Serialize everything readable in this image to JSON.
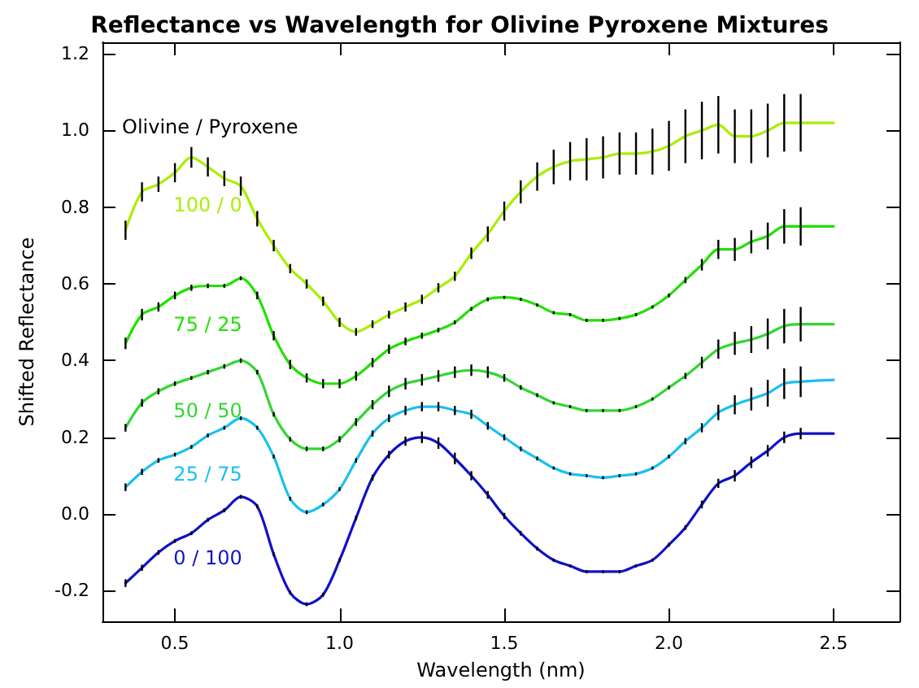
{
  "chart_data": {
    "type": "line",
    "title": "Reflectance vs Wavelength for Olivine Pyroxene Mixtures",
    "xlabel": "Wavelength (nm)",
    "ylabel": "Shifted Reflectance",
    "legend_title": "Olivine / Pyroxene",
    "x": [
      0.35,
      0.4,
      0.45,
      0.5,
      0.55,
      0.6,
      0.65,
      0.7,
      0.75,
      0.8,
      0.85,
      0.9,
      0.95,
      1.0,
      1.05,
      1.1,
      1.15,
      1.2,
      1.25,
      1.3,
      1.35,
      1.4,
      1.45,
      1.5,
      1.55,
      1.6,
      1.65,
      1.7,
      1.75,
      1.8,
      1.85,
      1.9,
      1.95,
      2.0,
      2.05,
      2.1,
      2.15,
      2.2,
      2.25,
      2.3,
      2.35,
      2.4,
      2.5
    ],
    "series": [
      {
        "name": "100 / 0",
        "color": "#aaee00",
        "values": [
          0.74,
          0.84,
          0.86,
          0.89,
          0.93,
          0.905,
          0.875,
          0.855,
          0.77,
          0.7,
          0.64,
          0.6,
          0.555,
          0.5,
          0.475,
          0.495,
          0.52,
          0.54,
          0.56,
          0.59,
          0.62,
          0.68,
          0.73,
          0.79,
          0.84,
          0.88,
          0.905,
          0.92,
          0.925,
          0.93,
          0.94,
          0.94,
          0.945,
          0.96,
          0.985,
          1.0,
          1.015,
          0.985,
          0.985,
          1.0,
          1.02,
          1.02,
          1.02
        ],
        "errors": [
          0.025,
          0.025,
          0.02,
          0.025,
          0.027,
          0.025,
          0.02,
          0.025,
          0.02,
          0.015,
          0.012,
          0.012,
          0.012,
          0.012,
          0.01,
          0.01,
          0.01,
          0.012,
          0.012,
          0.012,
          0.012,
          0.015,
          0.02,
          0.025,
          0.03,
          0.037,
          0.045,
          0.05,
          0.055,
          0.055,
          0.055,
          0.055,
          0.06,
          0.065,
          0.07,
          0.075,
          0.075,
          0.07,
          0.07,
          0.07,
          0.075,
          0.075,
          null
        ]
      },
      {
        "name": "75 / 25",
        "color": "#22e000",
        "values": [
          0.445,
          0.52,
          0.54,
          0.57,
          0.59,
          0.595,
          0.595,
          0.615,
          0.57,
          0.465,
          0.39,
          0.355,
          0.34,
          0.34,
          0.36,
          0.395,
          0.43,
          0.45,
          0.465,
          0.48,
          0.5,
          0.535,
          0.56,
          0.565,
          0.56,
          0.545,
          0.525,
          0.52,
          0.505,
          0.505,
          0.51,
          0.52,
          0.54,
          0.57,
          0.61,
          0.65,
          0.69,
          0.69,
          0.71,
          0.725,
          0.75,
          0.75,
          0.75
        ],
        "errors": [
          0.015,
          0.015,
          0.012,
          0.01,
          0.008,
          0.006,
          0.005,
          0.005,
          0.01,
          0.012,
          0.012,
          0.012,
          0.012,
          0.012,
          0.012,
          0.012,
          0.012,
          0.01,
          0.008,
          0.006,
          0.005,
          0.005,
          0.005,
          0.004,
          0.004,
          0.004,
          0.004,
          0.004,
          0.004,
          0.004,
          0.004,
          0.004,
          0.004,
          0.005,
          0.008,
          0.015,
          0.025,
          0.03,
          0.03,
          0.035,
          0.045,
          0.05,
          null
        ]
      },
      {
        "name": "50 / 50",
        "color": "#33d633",
        "values": [
          0.225,
          0.29,
          0.32,
          0.34,
          0.355,
          0.37,
          0.385,
          0.4,
          0.37,
          0.26,
          0.195,
          0.17,
          0.17,
          0.195,
          0.24,
          0.285,
          0.32,
          0.34,
          0.35,
          0.36,
          0.37,
          0.375,
          0.37,
          0.355,
          0.33,
          0.31,
          0.29,
          0.28,
          0.27,
          0.27,
          0.27,
          0.28,
          0.3,
          0.33,
          0.36,
          0.395,
          0.43,
          0.445,
          0.455,
          0.47,
          0.49,
          0.495,
          0.495
        ],
        "errors": [
          0.01,
          0.01,
          0.008,
          0.006,
          0.005,
          0.006,
          0.006,
          0.006,
          0.006,
          0.006,
          0.006,
          0.006,
          0.006,
          0.008,
          0.01,
          0.012,
          0.015,
          0.015,
          0.015,
          0.015,
          0.015,
          0.015,
          0.015,
          0.01,
          0.006,
          0.005,
          0.004,
          0.004,
          0.004,
          0.004,
          0.004,
          0.004,
          0.004,
          0.005,
          0.008,
          0.015,
          0.025,
          0.03,
          0.035,
          0.04,
          0.045,
          0.045,
          null
        ]
      },
      {
        "name": "25 / 75",
        "color": "#18c0f0",
        "values": [
          0.07,
          0.11,
          0.14,
          0.155,
          0.175,
          0.205,
          0.225,
          0.25,
          0.225,
          0.15,
          0.04,
          0.005,
          0.025,
          0.065,
          0.14,
          0.21,
          0.25,
          0.27,
          0.28,
          0.28,
          0.27,
          0.26,
          0.23,
          0.2,
          0.17,
          0.145,
          0.12,
          0.105,
          0.1,
          0.095,
          0.1,
          0.105,
          0.12,
          0.15,
          0.19,
          0.225,
          0.265,
          0.285,
          0.3,
          0.315,
          0.34,
          0.345,
          0.35
        ],
        "errors": [
          0.01,
          0.008,
          0.006,
          0.005,
          0.005,
          0.005,
          0.005,
          0.005,
          0.005,
          0.005,
          0.005,
          0.005,
          0.005,
          0.005,
          0.006,
          0.008,
          0.01,
          0.012,
          0.012,
          0.012,
          0.012,
          0.012,
          0.01,
          0.008,
          0.006,
          0.005,
          0.004,
          0.004,
          0.004,
          0.004,
          0.004,
          0.004,
          0.004,
          0.005,
          0.008,
          0.012,
          0.02,
          0.025,
          0.03,
          0.035,
          0.04,
          0.04,
          null
        ]
      },
      {
        "name": "0 / 100",
        "color": "#1010c8",
        "values": [
          -0.18,
          -0.14,
          -0.1,
          -0.07,
          -0.05,
          -0.015,
          0.01,
          0.045,
          0.02,
          -0.105,
          -0.205,
          -0.235,
          -0.21,
          -0.12,
          -0.01,
          0.095,
          0.155,
          0.19,
          0.2,
          0.185,
          0.145,
          0.1,
          0.05,
          -0.005,
          -0.05,
          -0.09,
          -0.12,
          -0.135,
          -0.15,
          -0.15,
          -0.15,
          -0.135,
          -0.12,
          -0.08,
          -0.035,
          0.025,
          0.08,
          0.1,
          0.135,
          0.165,
          0.2,
          0.21,
          0.21
        ],
        "errors": [
          0.01,
          0.008,
          0.006,
          0.005,
          0.005,
          0.005,
          0.005,
          0.005,
          0.005,
          0.005,
          0.005,
          0.005,
          0.005,
          0.005,
          0.006,
          0.008,
          0.01,
          0.012,
          0.015,
          0.015,
          0.015,
          0.012,
          0.01,
          0.008,
          0.006,
          0.005,
          0.004,
          0.004,
          0.004,
          0.004,
          0.004,
          0.004,
          0.004,
          0.005,
          0.006,
          0.01,
          0.012,
          0.015,
          0.015,
          0.015,
          0.015,
          0.015,
          null
        ]
      }
    ],
    "xlim": [
      0.28,
      2.7
    ],
    "xticks": [
      0.5,
      {
        "value": 1,
        "label": "1.0"
      },
      1.5,
      {
        "value": 2,
        "label": "2.0"
      },
      2.5
    ],
    "ylim": [
      -0.28,
      1.23
    ],
    "yticks": [
      -0.2,
      {
        "value": 0,
        "label": "0.0"
      },
      0.2,
      0.4,
      0.6,
      0.8,
      {
        "value": 1,
        "label": "1.0"
      },
      1.2
    ],
    "grid": false,
    "marker": "none",
    "line_style": "solid"
  }
}
